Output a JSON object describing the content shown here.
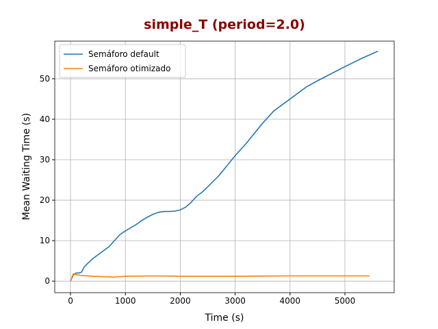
{
  "chart_data": {
    "type": "line",
    "title": "simple_T (period=2.0)",
    "title_color": "#8b0000",
    "xlabel": "Time (s)",
    "ylabel": "Mean Waiting Time (s)",
    "xlim": [
      -287,
      5898
    ],
    "ylim": [
      -2.85,
      59.3
    ],
    "xticks": [
      0,
      1000,
      2000,
      3000,
      4000,
      5000
    ],
    "yticks": [
      0,
      10,
      20,
      30,
      40,
      50
    ],
    "grid": true,
    "legend": "upper left",
    "series": [
      {
        "name": "Semáforo default",
        "color": "#1f77b4",
        "x": [
          0,
          50,
          100,
          150,
          200,
          250,
          300,
          400,
          500,
          600,
          700,
          800,
          900,
          1000,
          1100,
          1200,
          1300,
          1400,
          1500,
          1600,
          1700,
          1800,
          1900,
          2000,
          2100,
          2200,
          2300,
          2400,
          2500,
          2700,
          3000,
          3200,
          3500,
          3700,
          4000,
          4300,
          4500,
          5000,
          5300,
          5600
        ],
        "values": [
          0,
          1.5,
          2,
          2,
          2.2,
          3.5,
          4.2,
          5.5,
          6.5,
          7.5,
          8.5,
          10,
          11.5,
          12.4,
          13.2,
          14,
          15,
          15.8,
          16.5,
          17,
          17.2,
          17.2,
          17.3,
          17.6,
          18.3,
          19.5,
          21,
          22,
          23.3,
          26,
          31,
          34,
          39,
          42,
          45,
          48,
          49.5,
          53,
          55,
          56.8
        ]
      },
      {
        "name": "Semáforo otimizado",
        "color": "#ff7f0e",
        "x": [
          0,
          50,
          100,
          200,
          400,
          800,
          1000,
          1500,
          2000,
          2500,
          3000,
          4000,
          5000,
          5450
        ],
        "values": [
          0,
          1.8,
          1.6,
          1.4,
          1.2,
          1.0,
          1.2,
          1.3,
          1.2,
          1.2,
          1.2,
          1.3,
          1.3,
          1.3
        ]
      }
    ]
  }
}
